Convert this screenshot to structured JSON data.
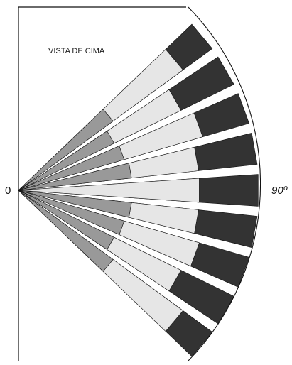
{
  "diagram": {
    "title": "VISTA DE CIMA",
    "origin_label": "0",
    "angle_label": "90º",
    "colors": {
      "background": "#ffffff",
      "outer_segment": "#333333",
      "middle_segment": "#e6e6e6",
      "inner_segment": "#999999",
      "outline": "#111111",
      "arc": "#111111"
    }
  }
}
